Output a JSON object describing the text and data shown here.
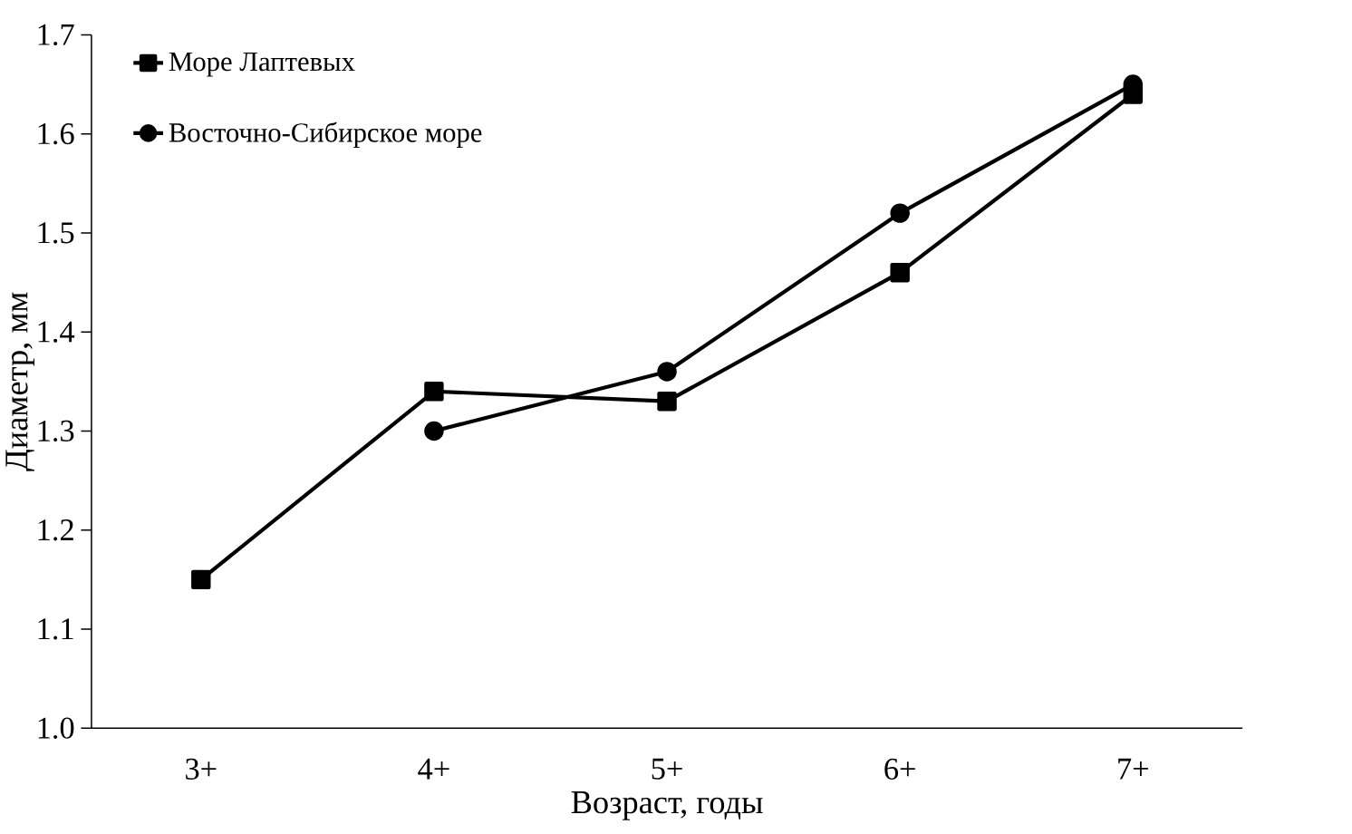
{
  "chart_data": {
    "type": "line",
    "xlabel": "Возраст, годы",
    "ylabel": "Диаметр, мм",
    "categories": [
      "3+",
      "4+",
      "5+",
      "6+",
      "7+"
    ],
    "series": [
      {
        "name": "Море Лаптевых",
        "color": "#000000",
        "marker": "square",
        "values": [
          1.15,
          1.34,
          1.33,
          1.46,
          1.64
        ]
      },
      {
        "name": "Восточно-Сибирское море",
        "color": "#000000",
        "marker": "circle",
        "values": [
          null,
          1.3,
          1.36,
          1.52,
          1.65
        ]
      }
    ],
    "ylim": [
      1.0,
      1.7
    ],
    "yticks": [
      {
        "value": 1.0,
        "label": "1.0"
      },
      1.1,
      1.2,
      1.3,
      1.4,
      1.5,
      1.6,
      1.7
    ],
    "legend": "top left",
    "line_style": "solid"
  }
}
